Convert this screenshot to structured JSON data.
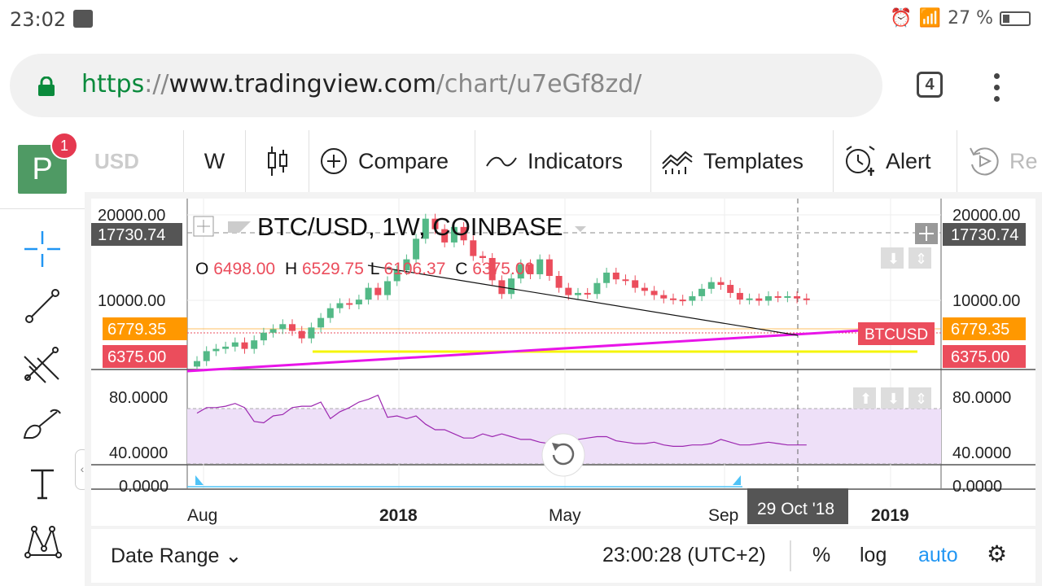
{
  "status": {
    "time": "23:02",
    "battery": "27 %"
  },
  "browser": {
    "url_proto": "https",
    "url_sep": "://",
    "url_host": "www.tradingview.com",
    "url_path": "/chart/u7eGf8zd/",
    "tab_count": "4"
  },
  "app": {
    "logo_letter": "P",
    "notification_count": "1"
  },
  "toolbar": {
    "symbol_partial": "USD",
    "interval": "W",
    "compare": "Compare",
    "indicators": "Indicators",
    "templates": "Templates",
    "alert": "Alert",
    "replay_partial": "Re"
  },
  "chart": {
    "title": "BTC/USD, 1W, COINBASE",
    "ohlc": {
      "o_label": "O",
      "o": "6498.00",
      "h_label": "H",
      "h": "6529.75",
      "l_label": "L",
      "l": "6106.37",
      "c_label": "C",
      "c": "6375.00"
    },
    "price_ticks": [
      "20000.00",
      "10000.00"
    ],
    "crosshair_price": "17730.74",
    "orange_price": "6779.35",
    "last_price": "6375.00",
    "series_label": "BTCUSD",
    "rsi_ticks": [
      "80.0000",
      "40.0000"
    ],
    "third_pane_tick": "0.0000",
    "x_labels": [
      "Aug",
      "2018",
      "May",
      "Sep",
      "2019"
    ],
    "crosshair_date": "29 Oct '18",
    "colors": {
      "up": "#53b987",
      "down": "#eb4d5c",
      "trendline": "#e815e8",
      "support": "#f5f50a",
      "orange": "#ff9800",
      "rsi_fill": "#eee0f8",
      "rsi_line": "#9c27b0"
    }
  },
  "chart_data": {
    "type": "candlestick",
    "title": "BTC/USD, 1W, COINBASE",
    "scale": "log",
    "ylim_approx": [
      3000,
      20000
    ],
    "y_ticks": [
      20000,
      10000
    ],
    "x_ticks": [
      "Aug",
      "2018",
      "May",
      "Sep",
      "2019"
    ],
    "candles": [
      {
        "o": 2600,
        "c": 2800
      },
      {
        "o": 2800,
        "c": 3200
      },
      {
        "o": 3200,
        "c": 3300
      },
      {
        "o": 3300,
        "c": 3400
      },
      {
        "o": 3400,
        "c": 3600
      },
      {
        "o": 3600,
        "c": 3300
      },
      {
        "o": 3300,
        "c": 3700
      },
      {
        "o": 3700,
        "c": 4100
      },
      {
        "o": 4100,
        "c": 4300
      },
      {
        "o": 4300,
        "c": 4600
      },
      {
        "o": 4600,
        "c": 4200
      },
      {
        "o": 4200,
        "c": 3800
      },
      {
        "o": 3800,
        "c": 4400
      },
      {
        "o": 4400,
        "c": 5000
      },
      {
        "o": 5000,
        "c": 5700
      },
      {
        "o": 5700,
        "c": 6100
      },
      {
        "o": 6100,
        "c": 6000
      },
      {
        "o": 6000,
        "c": 6400
      },
      {
        "o": 6400,
        "c": 7500
      },
      {
        "o": 7500,
        "c": 6800
      },
      {
        "o": 6800,
        "c": 8200
      },
      {
        "o": 8200,
        "c": 9500
      },
      {
        "o": 9500,
        "c": 11000
      },
      {
        "o": 11000,
        "c": 14500
      },
      {
        "o": 14500,
        "c": 19000
      },
      {
        "o": 19000,
        "c": 16500
      },
      {
        "o": 16500,
        "c": 13800
      },
      {
        "o": 13800,
        "c": 17000
      },
      {
        "o": 17000,
        "c": 14200
      },
      {
        "o": 14200,
        "c": 11500
      },
      {
        "o": 11500,
        "c": 11200
      },
      {
        "o": 11200,
        "c": 8300
      },
      {
        "o": 8300,
        "c": 6900
      },
      {
        "o": 6900,
        "c": 8500
      },
      {
        "o": 8500,
        "c": 10300
      },
      {
        "o": 10300,
        "c": 9000
      },
      {
        "o": 9000,
        "c": 11000
      },
      {
        "o": 11000,
        "c": 8800
      },
      {
        "o": 8800,
        "c": 7500
      },
      {
        "o": 7500,
        "c": 6800
      },
      {
        "o": 6800,
        "c": 7000
      },
      {
        "o": 7000,
        "c": 6900
      },
      {
        "o": 6900,
        "c": 8000
      },
      {
        "o": 8000,
        "c": 9200
      },
      {
        "o": 9200,
        "c": 8400
      },
      {
        "o": 8400,
        "c": 8300
      },
      {
        "o": 8300,
        "c": 7500
      },
      {
        "o": 7500,
        "c": 7200
      },
      {
        "o": 7200,
        "c": 6800
      },
      {
        "o": 6800,
        "c": 6500
      },
      {
        "o": 6500,
        "c": 6400
      },
      {
        "o": 6400,
        "c": 6300
      },
      {
        "o": 6300,
        "c": 6700
      },
      {
        "o": 6700,
        "c": 7400
      },
      {
        "o": 7400,
        "c": 8100
      },
      {
        "o": 8100,
        "c": 7800
      },
      {
        "o": 7800,
        "c": 7000
      },
      {
        "o": 7000,
        "c": 6400
      },
      {
        "o": 6400,
        "c": 6500
      },
      {
        "o": 6500,
        "c": 6300
      },
      {
        "o": 6300,
        "c": 6700
      },
      {
        "o": 6700,
        "c": 6600
      },
      {
        "o": 6600,
        "c": 6700
      },
      {
        "o": 6700,
        "c": 6500
      },
      {
        "o": 6498,
        "c": 6375
      }
    ],
    "lines": [
      {
        "name": "descending-trendline",
        "from_price": 16000,
        "to_price": 6700
      },
      {
        "name": "ascending-trendline",
        "from_price": 2600,
        "to_price": 6800
      },
      {
        "name": "support",
        "price": 5900
      }
    ],
    "rsi_ticks": [
      80,
      40
    ],
    "rsi_values": [
      72,
      76,
      76,
      77,
      79,
      76,
      66,
      65,
      70,
      71,
      76,
      77,
      77,
      80,
      68,
      73,
      76,
      80,
      82,
      85,
      69,
      70,
      68,
      70,
      64,
      60,
      60,
      57,
      54,
      54,
      57,
      55,
      57,
      55,
      53,
      53,
      51,
      50,
      50,
      50,
      53,
      54,
      55,
      55,
      52,
      51,
      50,
      50,
      51,
      49,
      48,
      48,
      49,
      49,
      50,
      53,
      51,
      49,
      49,
      50,
      51,
      50,
      49,
      49,
      49
    ]
  },
  "bottom": {
    "date_range": "Date Range",
    "clock": "23:00:28 (UTC+2)",
    "percent": "%",
    "log": "log",
    "auto": "auto"
  }
}
